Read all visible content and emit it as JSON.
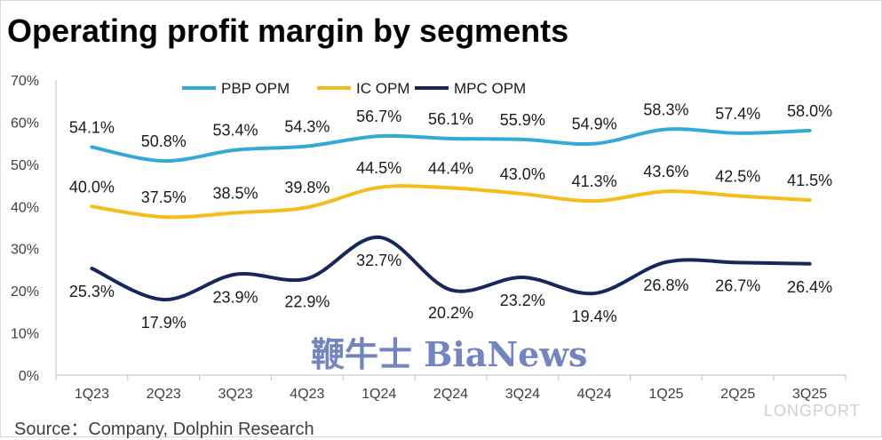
{
  "title": "Operating profit margin by segments",
  "source": "Source：Company, Dolphin Research",
  "watermarks": {
    "brand": "鞭牛士 BiaNews",
    "corner": "LONGPORT"
  },
  "chart_data": {
    "type": "line",
    "categories": [
      "1Q23",
      "2Q23",
      "3Q23",
      "4Q23",
      "1Q24",
      "2Q24",
      "3Q24",
      "4Q24",
      "1Q25",
      "2Q25",
      "3Q25"
    ],
    "ylim": [
      0,
      70
    ],
    "yticks": [
      "0%",
      "10%",
      "20%",
      "30%",
      "40%",
      "50%",
      "60%",
      "70%"
    ],
    "legend_position": "top",
    "grid": false,
    "series": [
      {
        "name": "PBP OPM",
        "color": "#31a9d9",
        "values": [
          54.1,
          50.8,
          53.4,
          54.3,
          56.7,
          56.1,
          55.9,
          54.9,
          58.3,
          57.4,
          58.0
        ],
        "labels": [
          "54.1%",
          "50.8%",
          "53.4%",
          "54.3%",
          "56.7%",
          "56.1%",
          "55.9%",
          "54.9%",
          "58.3%",
          "57.4%",
          "58.0%"
        ]
      },
      {
        "name": "IC OPM",
        "color": "#f4bd1d",
        "values": [
          40.0,
          37.5,
          38.5,
          39.8,
          44.5,
          44.4,
          43.0,
          41.3,
          43.6,
          42.5,
          41.5
        ],
        "labels": [
          "40.0%",
          "37.5%",
          "38.5%",
          "39.8%",
          "44.5%",
          "44.4%",
          "43.0%",
          "41.3%",
          "43.6%",
          "42.5%",
          "41.5%"
        ]
      },
      {
        "name": "MPC OPM",
        "color": "#17275c",
        "values": [
          25.3,
          17.9,
          23.9,
          22.9,
          32.7,
          20.2,
          23.2,
          19.4,
          26.8,
          26.7,
          26.4
        ],
        "labels": [
          "25.3%",
          "17.9%",
          "23.9%",
          "22.9%",
          "32.7%",
          "20.2%",
          "23.2%",
          "19.4%",
          "26.8%",
          "26.7%",
          "26.4%"
        ]
      }
    ]
  }
}
